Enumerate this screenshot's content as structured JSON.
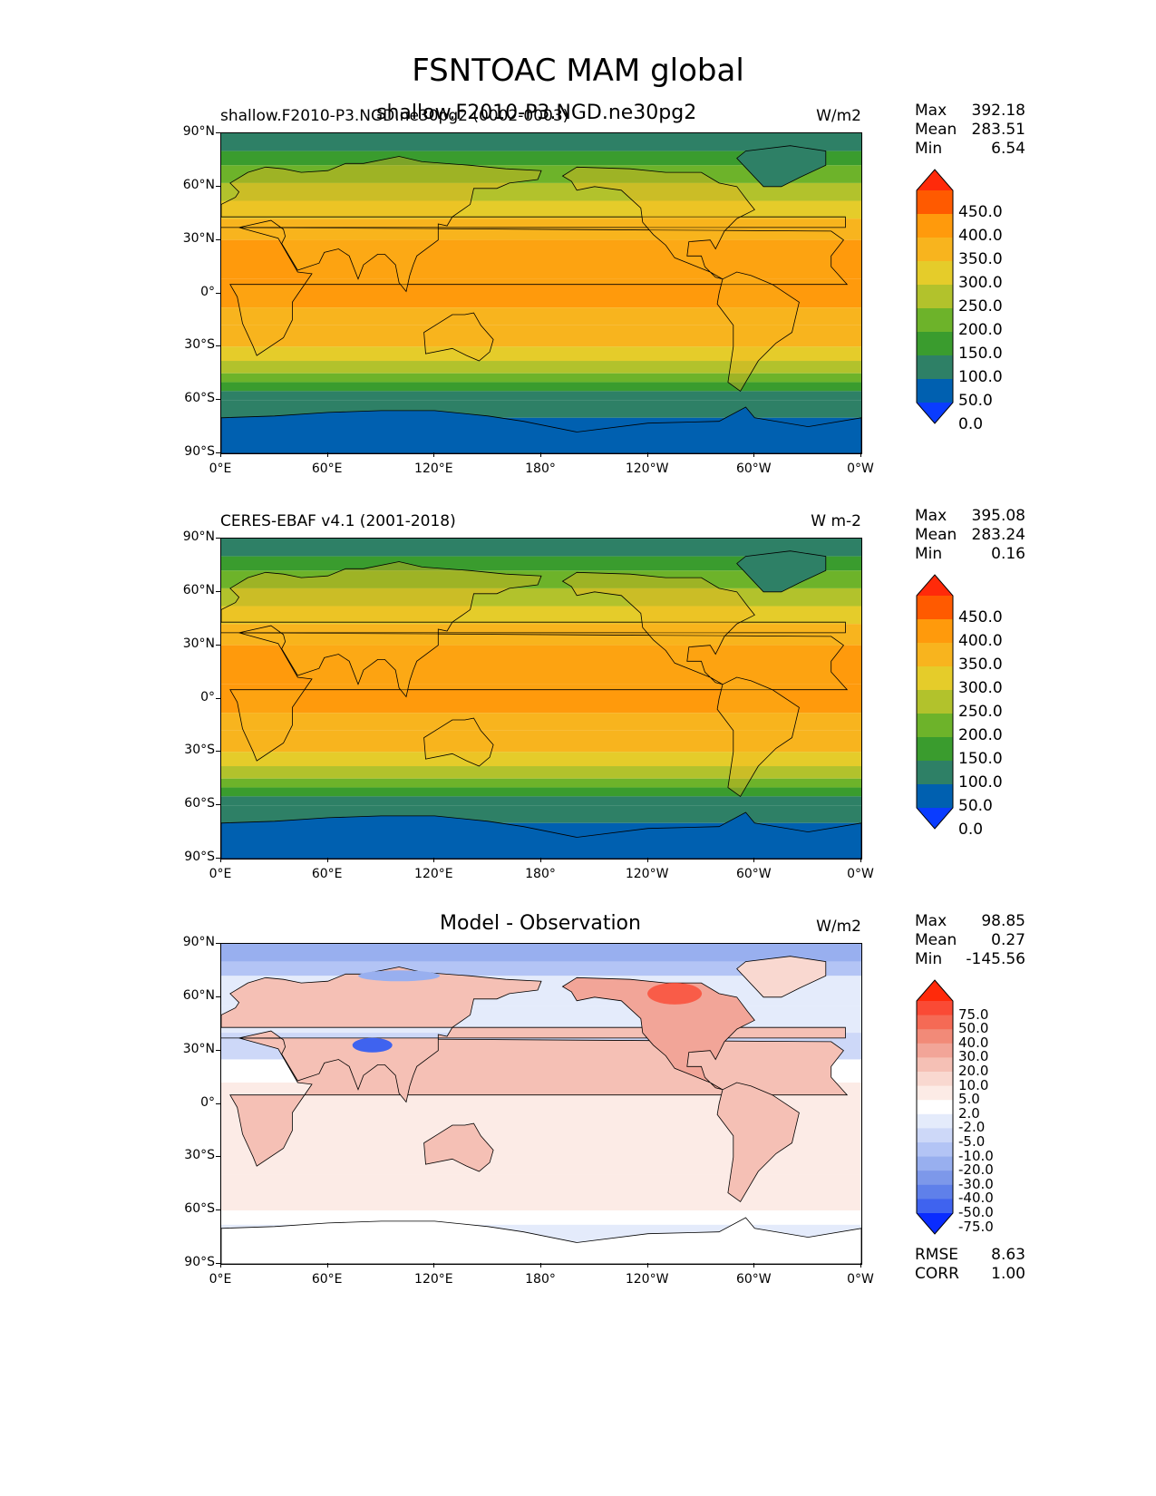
{
  "figure_title": "FSNTOAC MAM global",
  "overlay_text": "shallow.F2010-P3.NGD.ne30pg2",
  "panels": [
    {
      "left_title": "shallow.F2010-P3.NGD.ne30pg2 (0002-0003)",
      "center_title": "",
      "units": "W/m2",
      "stats": {
        "max_label": "Max",
        "max": "392.18",
        "mean_label": "Mean",
        "mean": "283.51",
        "min_label": "Min",
        "min": "6.54"
      },
      "kind": "field"
    },
    {
      "left_title": "CERES-EBAF v4.1 (2001-2018)",
      "center_title": "",
      "units": "W m-2",
      "stats": {
        "max_label": "Max",
        "max": "395.08",
        "mean_label": "Mean",
        "mean": "283.24",
        "min_label": "Min",
        "min": "0.16"
      },
      "kind": "field"
    },
    {
      "left_title": "",
      "center_title": "Model - Observation",
      "units": "W/m2",
      "stats": {
        "max_label": "Max",
        "max": "98.85",
        "mean_label": "Mean",
        "mean": "0.27",
        "min_label": "Min",
        "min": "-145.56"
      },
      "extra": {
        "rmse_label": "RMSE",
        "rmse": "8.63",
        "corr_label": "CORR",
        "corr": "1.00"
      },
      "kind": "diff"
    }
  ],
  "axes": {
    "lat_ticks": [
      "90°N",
      "60°N",
      "30°N",
      "0°",
      "30°S",
      "60°S",
      "90°S"
    ],
    "lon_ticks": [
      "0°E",
      "60°E",
      "120°E",
      "180°",
      "120°W",
      "60°W",
      "0°W"
    ]
  },
  "colorbars": {
    "field_levels": [
      "450.0",
      "400.0",
      "350.0",
      "300.0",
      "250.0",
      "200.0",
      "150.0",
      "100.0",
      "50.0",
      "0.0"
    ],
    "field_colors": [
      "#ff2a0a",
      "#ff5a00",
      "#ff9a0c",
      "#f8b41e",
      "#e5cc2a",
      "#b2c22c",
      "#6db32a",
      "#3a9c2e",
      "#2e8066",
      "#0060b0",
      "#0a3cff"
    ],
    "diff_levels": [
      "75.0",
      "50.0",
      "40.0",
      "30.0",
      "20.0",
      "10.0",
      "5.0",
      "2.0",
      "-2.0",
      "-5.0",
      "-10.0",
      "-20.0",
      "-30.0",
      "-40.0",
      "-50.0",
      "-75.0"
    ],
    "diff_colors": [
      "#ff2a0a",
      "#fa4a35",
      "#f56a55",
      "#f28a78",
      "#f2a598",
      "#f5c0b5",
      "#f9d8d0",
      "#fcebe6",
      "#ffffff",
      "#e4ebfb",
      "#cdd8f8",
      "#b3c4f5",
      "#98afef",
      "#7d98ea",
      "#5f80ea",
      "#3f63ef",
      "#0a2cff"
    ]
  }
}
